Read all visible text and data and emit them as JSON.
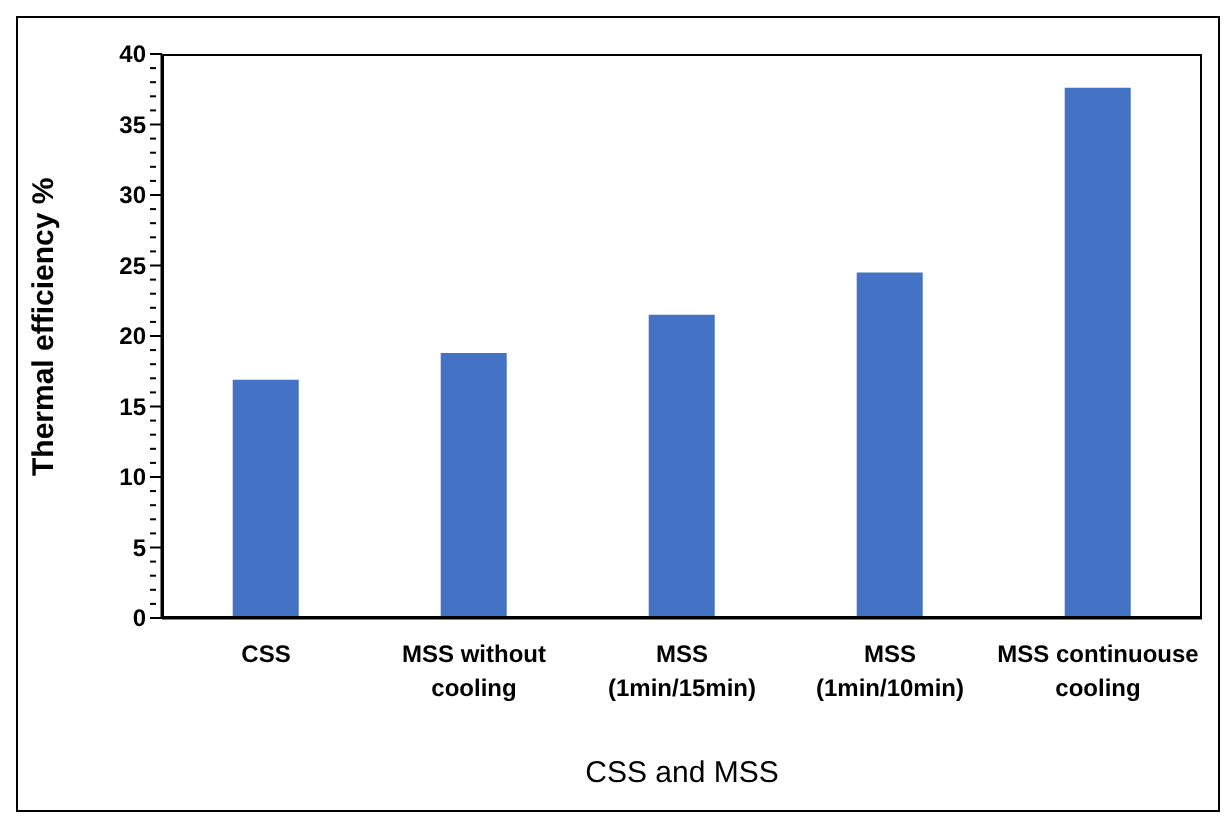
{
  "chart_data": {
    "type": "bar",
    "xlabel": "CSS and MSS",
    "ylabel": "Thermal efficiency %",
    "categories": [
      "CSS",
      "MSS without\ncooling",
      "MSS\n(1min/15min)",
      "MSS\n(1min/10min)",
      "MSS continuouse\ncooling"
    ],
    "values": [
      16.9,
      18.8,
      21.5,
      24.5,
      37.6
    ],
    "color": "#4472c4",
    "ylim": [
      0,
      40
    ],
    "yticks": [
      0,
      {
        "value": 1,
        "label": null
      },
      {
        "value": 2,
        "label": null
      },
      {
        "value": 3,
        "label": null
      },
      {
        "value": 4,
        "label": null
      },
      5,
      {
        "value": 6,
        "label": null
      },
      {
        "value": 7,
        "label": null
      },
      {
        "value": 8,
        "label": null
      },
      {
        "value": 9,
        "label": null
      },
      10,
      {
        "value": 11,
        "label": null
      },
      {
        "value": 12,
        "label": null
      },
      {
        "value": 13,
        "label": null
      },
      {
        "value": 14,
        "label": null
      },
      15,
      {
        "value": 16,
        "label": null
      },
      {
        "value": 17,
        "label": null
      },
      {
        "value": 18,
        "label": null
      },
      {
        "value": 19,
        "label": null
      },
      20,
      {
        "value": 21,
        "label": null
      },
      {
        "value": 22,
        "label": null
      },
      {
        "value": 23,
        "label": null
      },
      {
        "value": 24,
        "label": null
      },
      25,
      {
        "value": 26,
        "label": null
      },
      {
        "value": 27,
        "label": null
      },
      {
        "value": 28,
        "label": null
      },
      {
        "value": 29,
        "label": null
      },
      30,
      {
        "value": 31,
        "label": null
      },
      {
        "value": 32,
        "label": null
      },
      {
        "value": 33,
        "label": null
      },
      {
        "value": 34,
        "label": null
      },
      35,
      {
        "value": 36,
        "label": null
      },
      {
        "value": 37,
        "label": null
      },
      {
        "value": 38,
        "label": null
      },
      {
        "value": 39,
        "label": null
      },
      40
    ],
    "grid": false,
    "legend": false
  }
}
